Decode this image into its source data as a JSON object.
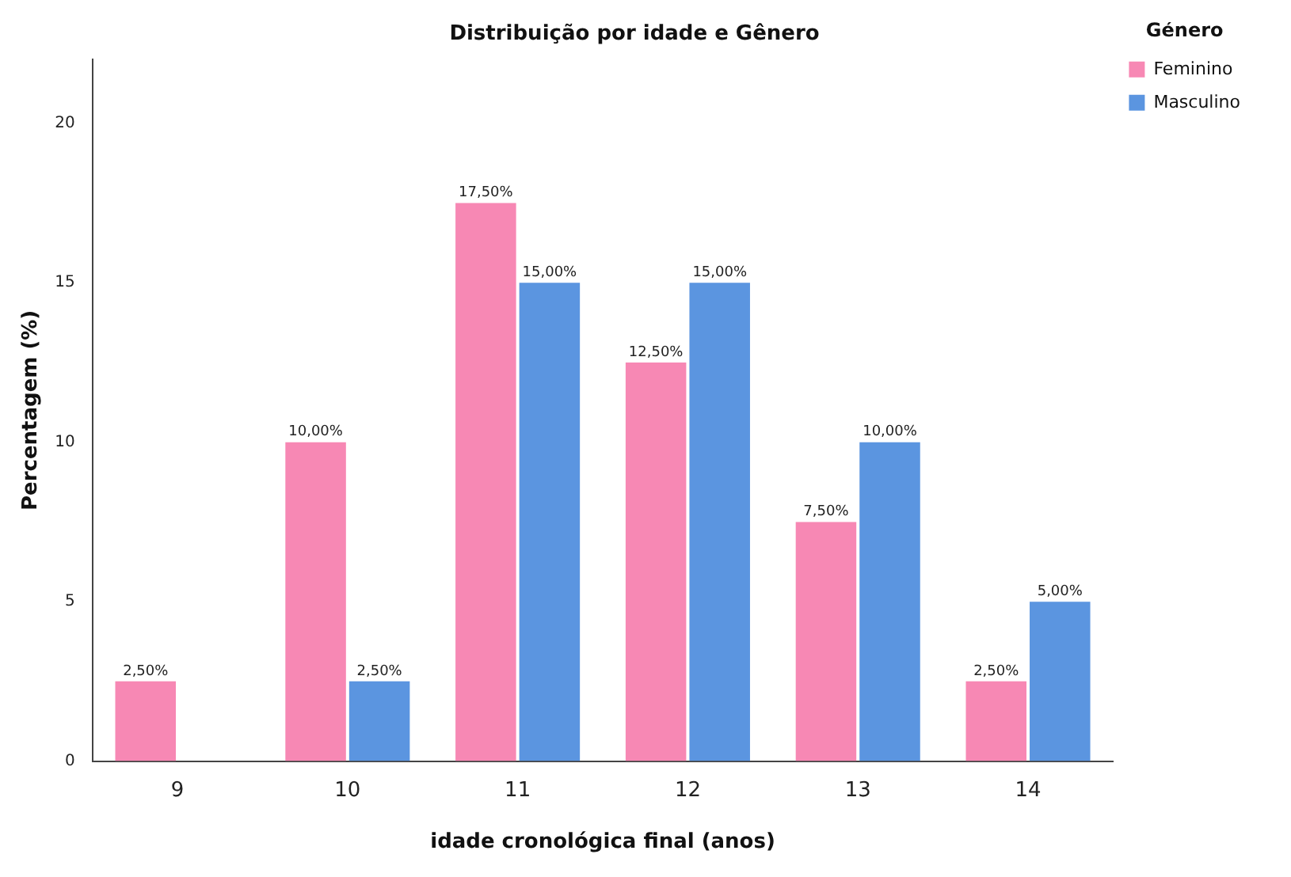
{
  "chart_data": {
    "type": "bar",
    "title": "Distribuição por idade e Gênero",
    "xlabel": "idade cronológica final (anos)",
    "ylabel": "Percentagem (%)",
    "legend_title": "Género",
    "legend": "top right",
    "grid": false,
    "categories": [
      "9",
      "10",
      "11",
      "12",
      "13",
      "14"
    ],
    "series": [
      {
        "name": "Feminino",
        "color": "#f788b4",
        "values": [
          2.5,
          10,
          17.5,
          12.5,
          7.5,
          2.5
        ],
        "value_labels": [
          "2,50%",
          "10,00%",
          "17,50%",
          "12,50%",
          "7,50%",
          "2,50%"
        ]
      },
      {
        "name": "Masculino",
        "color": "#5b95e0",
        "values": [
          null,
          2.5,
          15,
          15,
          10,
          5
        ],
        "value_labels": [
          null,
          "2,50%",
          "15,00%",
          "15,00%",
          "10,00%",
          "5,00%"
        ]
      }
    ],
    "ylim": [
      0,
      22
    ],
    "yticks": [
      0,
      5,
      10,
      15,
      20
    ]
  }
}
